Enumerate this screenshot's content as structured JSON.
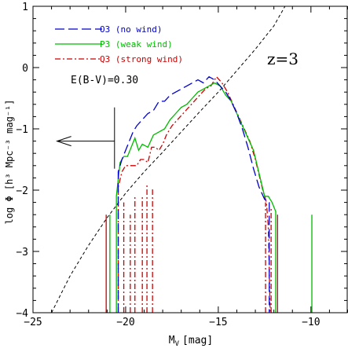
{
  "chart_data": {
    "type": "line",
    "xlabel": "M",
    "xlabel_sub": "V",
    "xlabel_unit": "[mag]",
    "ylabel": "log Φ [h³ Mpc⁻³ mag⁻¹]",
    "xlim": [
      -25,
      -8
    ],
    "ylim": [
      -4,
      1
    ],
    "x_ticks": [
      -25,
      -20,
      -15,
      -10
    ],
    "y_ticks": [
      -4,
      -3,
      -2,
      -1,
      0,
      1
    ],
    "redshift_label": "z=3",
    "extinction_label": "E(B-V)=0.30",
    "legend": [
      {
        "label": "O3 (no wind)",
        "color": "#0000cc",
        "dash": "12,5"
      },
      {
        "label": "P3 (weak wind)",
        "color": "#00bb00",
        "dash": ""
      },
      {
        "label": "Q3 (strong wind)",
        "color": "#cc0000",
        "dash": "7,3,2,3"
      }
    ],
    "series": [
      {
        "name": "O3 (no wind)",
        "color": "#0000cc",
        "dash": "12,5",
        "points": [
          [
            -20.4,
            -4.0
          ],
          [
            -20.4,
            -1.7
          ],
          [
            -20.2,
            -1.5
          ],
          [
            -20.0,
            -1.35
          ],
          [
            -19.8,
            -1.2
          ],
          [
            -19.6,
            -1.05
          ],
          [
            -19.4,
            -0.95
          ],
          [
            -19.1,
            -0.85
          ],
          [
            -18.8,
            -0.75
          ],
          [
            -18.5,
            -0.7
          ],
          [
            -18.2,
            -0.55
          ],
          [
            -17.9,
            -0.55
          ],
          [
            -17.6,
            -0.45
          ],
          [
            -17.3,
            -0.4
          ],
          [
            -17.0,
            -0.35
          ],
          [
            -16.7,
            -0.3
          ],
          [
            -16.4,
            -0.25
          ],
          [
            -16.1,
            -0.2
          ],
          [
            -15.8,
            -0.25
          ],
          [
            -15.5,
            -0.15
          ],
          [
            -15.2,
            -0.2
          ],
          [
            -14.9,
            -0.3
          ],
          [
            -14.6,
            -0.4
          ],
          [
            -14.3,
            -0.55
          ],
          [
            -14.0,
            -0.75
          ],
          [
            -13.7,
            -1.0
          ],
          [
            -13.4,
            -1.3
          ],
          [
            -13.1,
            -1.65
          ],
          [
            -12.8,
            -1.95
          ],
          [
            -12.5,
            -2.15
          ],
          [
            -12.25,
            -2.2
          ],
          [
            -12.25,
            -4.0
          ]
        ]
      },
      {
        "name": "P3 (weak wind)",
        "color": "#00bb00",
        "dash": "",
        "points": [
          [
            -20.5,
            -4.0
          ],
          [
            -20.5,
            -2.1
          ],
          [
            -20.3,
            -1.55
          ],
          [
            -20.1,
            -1.45
          ],
          [
            -19.9,
            -1.45
          ],
          [
            -19.7,
            -1.3
          ],
          [
            -19.5,
            -1.15
          ],
          [
            -19.3,
            -1.35
          ],
          [
            -19.1,
            -1.25
          ],
          [
            -18.8,
            -1.3
          ],
          [
            -18.5,
            -1.1
          ],
          [
            -18.2,
            -1.05
          ],
          [
            -17.9,
            -1.0
          ],
          [
            -17.6,
            -0.85
          ],
          [
            -17.3,
            -0.75
          ],
          [
            -17.0,
            -0.65
          ],
          [
            -16.7,
            -0.6
          ],
          [
            -16.4,
            -0.5
          ],
          [
            -16.1,
            -0.4
          ],
          [
            -15.8,
            -0.35
          ],
          [
            -15.5,
            -0.3
          ],
          [
            -15.2,
            -0.25
          ],
          [
            -14.9,
            -0.3
          ],
          [
            -14.6,
            -0.45
          ],
          [
            -14.3,
            -0.55
          ],
          [
            -14.0,
            -0.75
          ],
          [
            -13.7,
            -0.95
          ],
          [
            -13.4,
            -1.15
          ],
          [
            -13.1,
            -1.35
          ],
          [
            -12.9,
            -1.6
          ],
          [
            -12.7,
            -1.85
          ],
          [
            -12.5,
            -2.1
          ],
          [
            -12.3,
            -2.1
          ],
          [
            -12.1,
            -2.2
          ],
          [
            -11.9,
            -2.35
          ],
          [
            -11.9,
            -4.0
          ]
        ]
      },
      {
        "name": "Q3 (strong wind)",
        "color": "#cc0000",
        "dash": "7,3,2,3",
        "points": [
          [
            -20.4,
            -4.0
          ],
          [
            -20.4,
            -1.95
          ],
          [
            -20.2,
            -1.7
          ],
          [
            -20.0,
            -1.6
          ],
          [
            -19.8,
            -1.6
          ],
          [
            -19.6,
            -1.6
          ],
          [
            -19.4,
            -1.6
          ],
          [
            -19.2,
            -1.5
          ],
          [
            -19.0,
            -1.5
          ],
          [
            -18.8,
            -1.55
          ],
          [
            -18.6,
            -1.3
          ],
          [
            -18.4,
            -1.3
          ],
          [
            -18.2,
            -1.35
          ],
          [
            -18.0,
            -1.25
          ],
          [
            -17.8,
            -1.1
          ],
          [
            -17.5,
            -0.95
          ],
          [
            -17.2,
            -0.85
          ],
          [
            -16.9,
            -0.75
          ],
          [
            -16.6,
            -0.65
          ],
          [
            -16.3,
            -0.55
          ],
          [
            -16.0,
            -0.45
          ],
          [
            -15.7,
            -0.35
          ],
          [
            -15.4,
            -0.3
          ],
          [
            -15.1,
            -0.15
          ],
          [
            -14.8,
            -0.25
          ],
          [
            -14.5,
            -0.4
          ],
          [
            -14.2,
            -0.6
          ],
          [
            -13.9,
            -0.8
          ],
          [
            -13.6,
            -1.0
          ],
          [
            -13.3,
            -1.2
          ],
          [
            -13.0,
            -1.5
          ],
          [
            -12.8,
            -1.75
          ],
          [
            -12.6,
            -2.0
          ],
          [
            -12.4,
            -2.2
          ],
          [
            -12.3,
            -2.6
          ],
          [
            -12.2,
            -4.0
          ]
        ]
      }
    ],
    "spikes": [
      {
        "color": "#cc0000",
        "dash": "",
        "x": -21.05,
        "y0": -4.0,
        "y1": -2.4
      },
      {
        "color": "#00bb00",
        "dash": "",
        "x": -20.85,
        "y0": -4.0,
        "y1": -2.4
      },
      {
        "color": "#cc0000",
        "dash": "7,3,2,3",
        "x": -20.1,
        "y0": -4.0,
        "y1": -2.2
      },
      {
        "color": "#cc0000",
        "dash": "7,3,2,3",
        "x": -19.75,
        "y0": -4.0,
        "y1": -2.4
      },
      {
        "color": "#cc0000",
        "dash": "7,3,2,3",
        "x": -19.5,
        "y0": -4.0,
        "y1": -2.1
      },
      {
        "color": "#cc0000",
        "dash": "7,3,2,3",
        "x": -19.1,
        "y0": -4.0,
        "y1": -2.1
      },
      {
        "color": "#cc0000",
        "dash": "7,3,2,3",
        "x": -18.85,
        "y0": -4.0,
        "y1": -1.9
      },
      {
        "color": "#cc0000",
        "dash": "7,3,2,3",
        "x": -18.55,
        "y0": -4.0,
        "y1": -1.95
      },
      {
        "color": "#cc0000",
        "dash": "7,3,2,3",
        "x": -12.45,
        "y0": -4.0,
        "y1": -2.2
      },
      {
        "color": "#cc0000",
        "dash": "7,3,2,3",
        "x": -12.15,
        "y0": -4.0,
        "y1": -2.3
      },
      {
        "color": "#cc0000",
        "dash": "",
        "x": -11.8,
        "y0": -4.0,
        "y1": -2.4
      },
      {
        "color": "#00bb00",
        "dash": "",
        "x": -9.95,
        "y0": -4.0,
        "y1": -2.4
      }
    ],
    "model_curve": {
      "color": "#000000",
      "dash": "4,3",
      "points": [
        [
          -24.0,
          -4.0
        ],
        [
          -23.0,
          -3.4
        ],
        [
          -22.0,
          -2.9
        ],
        [
          -21.0,
          -2.45
        ],
        [
          -20.0,
          -2.05
        ],
        [
          -19.0,
          -1.7
        ],
        [
          -18.0,
          -1.38
        ],
        [
          -17.0,
          -1.05
        ],
        [
          -16.0,
          -0.72
        ],
        [
          -15.0,
          -0.4
        ],
        [
          -14.0,
          -0.05
        ],
        [
          -13.0,
          0.3
        ],
        [
          -12.0,
          0.68
        ],
        [
          -11.4,
          1.0
        ]
      ]
    },
    "limit_marker": {
      "x": -20.6,
      "y_top": -0.65,
      "y_bottom": -1.65,
      "arrow_from_x": -20.6,
      "arrow_to_x": -23.7,
      "arrow_y": -1.2
    }
  }
}
